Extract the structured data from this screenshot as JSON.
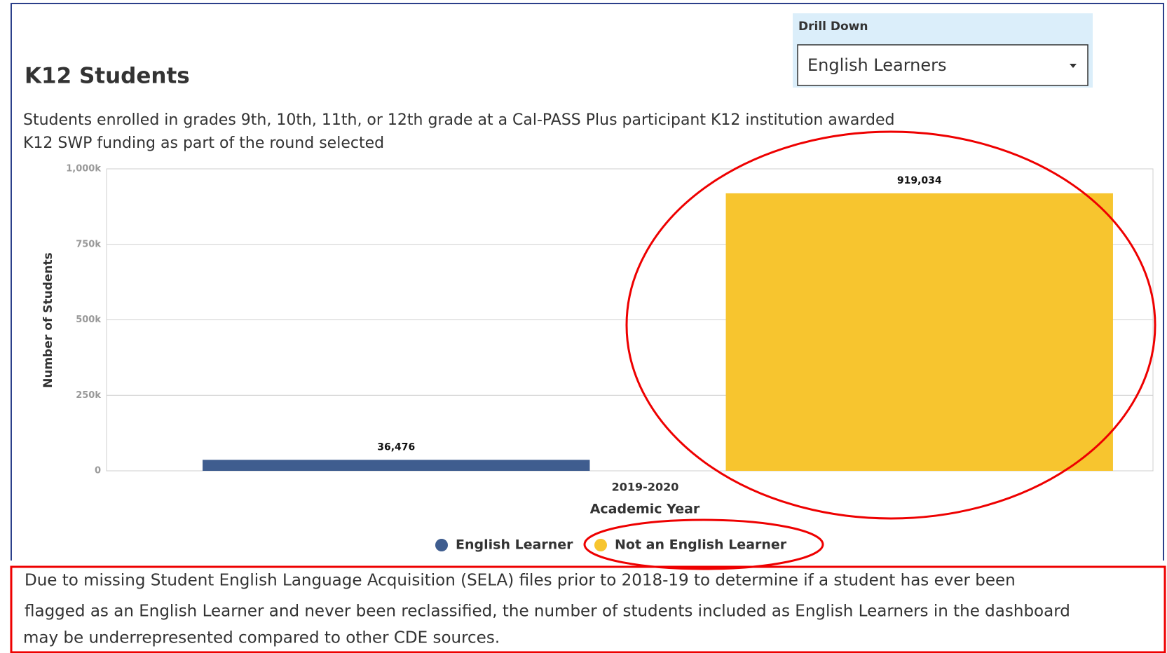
{
  "header": {
    "title": "K12 Students",
    "subtitle_lines": [
      "Students enrolled in grades 9th, 10th, 11th, or 12th  grade at a Cal-PASS Plus participant K12 institution awarded",
      "K12 SWP funding as part of the round selected"
    ]
  },
  "drill_down": {
    "label": "Drill Down",
    "selected": "English Learners"
  },
  "chart_data": {
    "type": "bar",
    "categories": [
      "2019-2020"
    ],
    "series": [
      {
        "name": "English Learner",
        "color": "#3f5d8f",
        "values": [
          36476
        ],
        "value_labels": [
          "36,476"
        ]
      },
      {
        "name": "Not an English Learner",
        "color": "#f7c52f",
        "values": [
          919034
        ],
        "value_labels": [
          "919,034"
        ]
      }
    ],
    "x_label": "Academic Year",
    "y_label": "Number of Students",
    "ylim": [
      0,
      1000000
    ],
    "yticks": [
      0,
      {
        "value": 250000,
        "label": "250k"
      },
      {
        "value": 500000,
        "label": "500k"
      },
      {
        "value": 750000,
        "label": "750k"
      },
      {
        "value": 1000000,
        "label": "1,000k"
      }
    ],
    "grid": true,
    "legend": "bottom"
  },
  "footnote": {
    "lines": [
      "Due to missing Student English Language Acquisition (SELA) files prior to 2018-19 to determine if a student has ever been",
      "flagged as an English Learner and never been reclassified, the number of students included as English Learners in the dashboard",
      "may be underrepresented compared to other CDE sources."
    ]
  }
}
